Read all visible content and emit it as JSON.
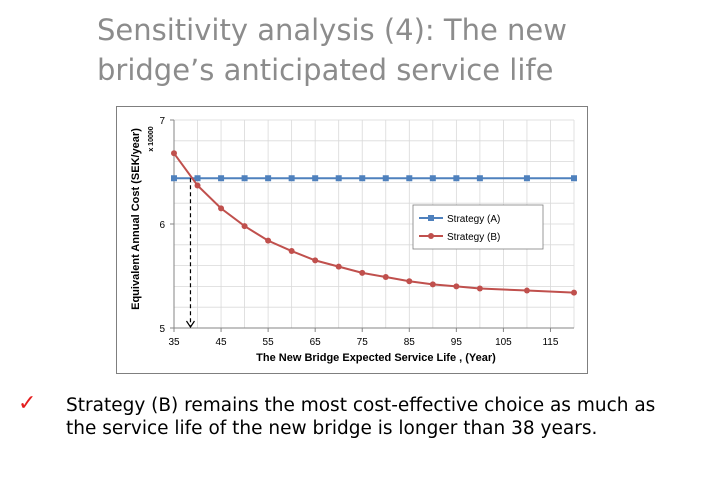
{
  "slide": {
    "title": "Sensitivity analysis (4): The new bridge’s anticipated service life",
    "bullet_icon": "check-mark-icon",
    "bullet_color": "#e41e1e",
    "conclusion": "Strategy (B) remains the most cost-effective choice as much as the service life of the new bridge is longer than 38 years."
  },
  "chart_data": {
    "type": "line",
    "title": "",
    "xlabel": "The New Bridge Expected Service Life , (Year)",
    "ylabel": "Equivalent Annual Cost (SEK/year)",
    "y_multiplier_label": "x 10000",
    "xlim": [
      35,
      120
    ],
    "ylim": [
      5,
      7
    ],
    "x_ticks": [
      35,
      45,
      55,
      65,
      75,
      85,
      95,
      105,
      115
    ],
    "y_ticks": [
      5,
      6,
      7
    ],
    "grid": true,
    "legend_position": "center-right",
    "series": [
      {
        "name": "Strategy (A)",
        "color": "#4f81bd",
        "marker": "square",
        "x": [
          35,
          40,
          45,
          50,
          55,
          60,
          65,
          70,
          75,
          80,
          85,
          90,
          95,
          100,
          110,
          120
        ],
        "values": [
          6.44,
          6.44,
          6.44,
          6.44,
          6.44,
          6.44,
          6.44,
          6.44,
          6.44,
          6.44,
          6.44,
          6.44,
          6.44,
          6.44,
          6.44,
          6.44
        ]
      },
      {
        "name": "Strategy (B)",
        "color": "#c0504d",
        "marker": "circle",
        "x": [
          35,
          40,
          45,
          50,
          55,
          60,
          65,
          70,
          75,
          80,
          85,
          90,
          95,
          100,
          110,
          120
        ],
        "values": [
          6.68,
          6.37,
          6.15,
          5.98,
          5.84,
          5.74,
          5.65,
          5.59,
          5.53,
          5.49,
          5.45,
          5.42,
          5.4,
          5.38,
          5.36,
          5.34
        ]
      }
    ],
    "annotation": {
      "type": "dashed-arrow",
      "x": 38.5,
      "from_y": 6.44,
      "to_y": 5
    }
  }
}
